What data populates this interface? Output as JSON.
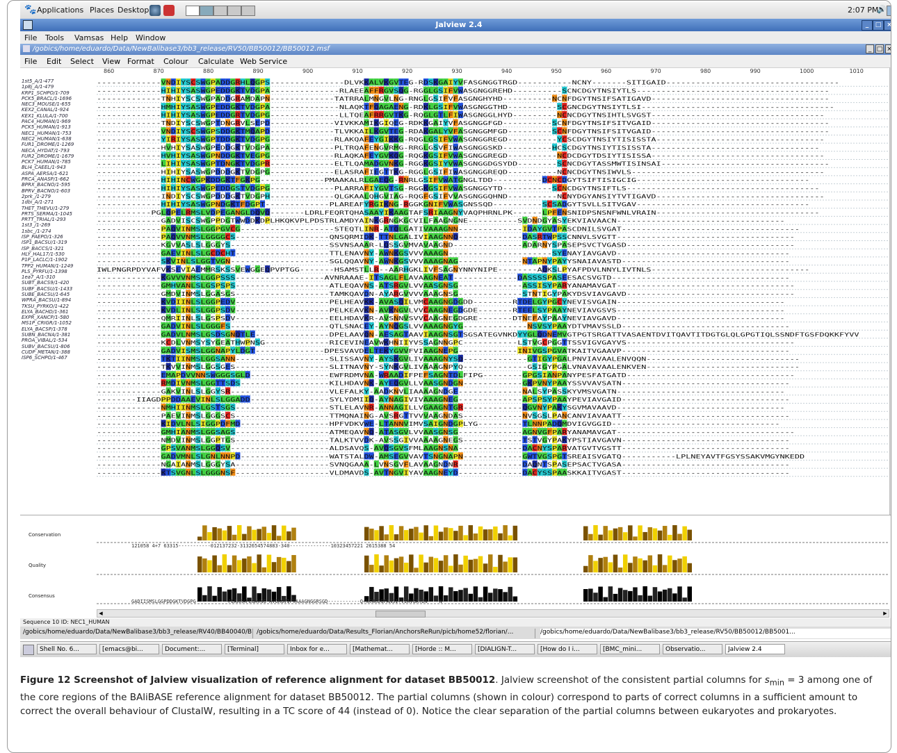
{
  "desktop": {
    "menu": [
      "Applications",
      "Places",
      "Desktop"
    ],
    "clock": "2:07 PM"
  },
  "window": {
    "title": "Jalview 2.4",
    "menu": [
      "File",
      "Tools",
      "Vamsas",
      "Help",
      "Window"
    ],
    "doc_path": "/gobics/home/eduardo/Data/NewBalibase3/bb3_release/RV50/BB50012/BB50012.msf",
    "doc_menu": [
      "File",
      "Edit",
      "Select",
      "View",
      "Format",
      "Colour",
      "Calculate",
      "Web Service"
    ]
  },
  "ruler": [
    "860",
    "870",
    "880",
    "890",
    "900",
    "910",
    "920",
    "930",
    "940",
    "950",
    "960",
    "970",
    "980",
    "990",
    "1000",
    "1010"
  ],
  "sequences": [
    "1st5_A/1-477",
    "1p8j_A/1-479",
    "KRP1_SCHPO/1-709",
    "PCK5_BRACL/1-1696",
    "NEC3_MOUSE/1-655",
    "KEX2_CANAL/1-924",
    "KEX1_KLULA/1-700",
    "PAC4_HUMAN/1-969",
    "PCK5_HUMAN/1-913",
    "NEC1_HUMAN/1-753",
    "NEC2_HUMAN/1-638",
    "FUR1_DROME/1-1269",
    "NECA_HYDAT/1-793",
    "FUR2_DROME/1-1679",
    "PCK7_HUMAN/1-785",
    "BLI4_CAEEL/1-943",
    "ASPA_AERSA/1-621",
    "PRCA_ANASP/1-662",
    "BPRX_BACNO/1-595",
    "BPRV_BACNO/1-603",
    "2prk_/1-279",
    "1dbi_A/1-271",
    "THET_THEVU/1-279",
    "PRTS_SERMA/1-1045",
    "PRTT_TRIAL/1-293",
    "1st3_/1-269",
    "1sbc_/1-274",
    "ISP_PAEPO/1-326",
    "ISP1_BACSU/1-319",
    "ISP_BACCS/1-321",
    "HLY_HAL17/1-530",
    "P1P_LACLC/1-1902",
    "TPP2_HUMAN/1-1249",
    "PLS_PYRFU/1-1398",
    "1ea7_A/1-310",
    "SUBT_BACS9/1-420",
    "SUBF_BACSU/1-1433",
    "SUBE_BACSU/1-645",
    "WPRA_BACSU/1-894",
    "TKSU_PYRKO/1-422",
    "ELYA_BACHD/1-361",
    "EXPR_XANCP/1-580",
    "MS1P_CRIGR/1-1052",
    "ELYA_BACSP/1-378",
    "SUBN_BACNA/1-381",
    "PROA_VIBAL/1-534",
    "SUBV_BACSU/1-806",
    "CUDP_METAN/1-388",
    "ISP6_SCHPO/1-467"
  ],
  "alignment_rows": [
    "-------------VNDIYSCSWGPADDGRHLQGPS---------------DLVKKALVKGVTEG-RDSKGAIYVFASGNGGTRGD-----------NCNY-------SITIGAID-----------------------------------",
    "-------------HIHIYSASWGPEDDGKTVDGPA--------------RLAEEAFFRGVSQG-RGGLGSIFVWASGNGGREHD----------SCNCDGYTNSIYTLS---------------------------------------",
    "-------------TNHIYSCSWGPADDGRAMDAPN-------------TATRRALMNGVLNG-RNGLGSIFVFASGNGHYHD----------NCNFDGYTNSIFSATIGAVD------------------------------------",
    "-------------HMHIYSASWGPEDDGKTVDGPA--------------NLAQKTFQAGAENG-RDKLGSIFVWASGNGGTHD----------SCGNCDGYTNSIYTLSI---------------------------------------",
    "-------------HIHIYSASWGPEDDGRTVDGPG--------------LLTQEAFRRGVTKG-RQGLGTLFIWASGNGGLHYD---------NCNCDGYTNSIHTLSVGST-----------------------------------",
    "-------------TNDIYSCSWGPTDNGRVLSEPD-------------VIVKKAMIKGIQEG-RDKKGAIYVFASGNGGFGD----------SCNFDGYTNSIFSITVGAID------------------------------------",
    "-------------VNDIYSCSWGPSDDGKTMQAPD-------------TLVKKAILKGVTEG-RDAKGALYVFASGNGGMFGD---------SCNFDGYTNSIFSITVGAID------------------------------------",
    "-------------YIRIYSASWGPTDDGKTVDGPG-------------RLAKQAFEYGIKKG-RQGLGSIFVWASGNGGREGD----------YCSCDGYTNSIYTISISSTA----------------------------------",
    "-------------HVHIYSASWGPEDDGKTVDGPA-------------PLTRQAFENGVRMG-RRGLGSVFIWASGNGGSKD----------HCSCDGYTNSIYTISISSTA----------------------------------",
    "-------------HVHIYSASWGPNDDGKTVEGPG-------------RLAQKAFEYGVKQG-RQGKGSIFVWASGNGGREGD----------NCDCDGYTDSIYTISISSA-----------------------------------",
    "-------------LIHIYSASWGPTDNGKTVDGPR-------------ELTLQAMADGVNKG-RGGKGSIYVWASGNGGDGSYDD--------SCNCDGYTASSMWTISINSAI----------------------------------",
    "-------------HIHIYSASWGPDDDGKTVDGPG-------------ELASRAFIEGTTKG-RGGLGSIFIWASGNGGREQD----------NCNCDGYTNSIWVLS---------------------------------------",
    "-------------HIHINCWGPKDDGKTFGKPG-------------PMAAKALRLGAEQG-RNRLGSIFVWATGNGLTDD----------DCNCDGYTSIFTISIGCIG-----------------------------------",
    "-------------HIHIYSASWGPEDDGSTVDGPG-------------PLARRAFIYGVTSG-RGGKGSIFVWASGNGGYTD----------SCNCDGYTNSIFTLS---------------------------------------",
    "-------------INDIYSCSWGPDDDGKTVDGPH-------------QLGKAALQHGVIAG-RQGFGSIFVVASGNGGQHND----------NCNYDGYANSIYTVTIGAVD----------------------------------",
    "-------------HIHIYSASWGPNDGKTFDGPT-------------PLAREAFYRGIKNG-RGGKGNIFVWASGNSSQD----------SCSADGYTSVLLSITVGAV-----------------------------------",
    "-----------PGLQPELRMSLVDPEGANGLDQVQ-------LDRLFEQRTQHASAAYIKAAGTAFSRIAAGNYVAQPHRNLPK------LPFENSNIDPSNSNFWNLVRAIN---------------------------------",
    "-------------GADVISCSWGPPDGTWWDDKDPLHKQKVPLPDSTRLAMDYAINKGRNGKGCVILFAAGNGNE----------SVDNDGYASYEKVIAVAACN----------------------------------",
    "-------------PAQVINMSLGGPGVCG-------------------STEQTLINR-ATQLGATIVAAAGNN-------------IDAYGVTPASCDNILSVGAT------------------------------------",
    "-------------PAQVVNMSLGGGGCS-------------------QNSQRMIDK-TTNLGALIVIAAGNNQ-------------DASRTWPSSCNNVLSVGTT------------------------------------",
    "-------------KGVVASLSLGGGYS--------------------SSVNSAAAR-LQSSGVMVAVAAGND--------------ADARNYSPASEPSVCTVGASD----------------------------------",
    "-------------GAEVINLSLGCDCHT-------------------TTLENAVNY-AWNKGSVVVAAAGN---------------------SYENAYIAVGAVD-----------------------------------",
    "-------------SKVINLSLGGTVGN--------------------SGLQQAVNY-AWNKGSVVVAAAGNAG-------------NTAPNYPAYYSNAIAVASTD----------------------------------",
    "IWLPNGRPDYVAFVKSEVIAEMMRSKSSVEWGGEQPVPTGG-------HSAMSTLLR--AARHGKLIVFSAGNYNNYNIPE--------AQKSLPYAFPDVLNNYLIVTNLS--------------------------------",
    "-------------KGVVVNMSLGGPSSS------------------AVNRAAAE-ITSAGLFLAVAAGNEAT-------------DASSSSPASEESACSVGTD------------------------------------",
    "-------------GMHVANLSLGSPSPS-------------------ATLEQAVNS-ATSRGVLVVAASGNSG-------------ASSISYPARYANAMAVGAT------------------------------------",
    "-------------GMDVINMSLGGASGS-------------------TAMKQAVDN-AYARGVVVVAAAGNSG-------------STNTIGYPAKYDSVIAVGAVD----------------------------------",
    "-------------KVDIINLSLGGPEDV-------------------PELHEAVKK-AVASQILVMCAAGNGDGDD--------RTDELGYPGCYNEVISVGAIN----------------------------------",
    "-------------KVDLINLSLGGPSDV-------------------PELKEAVKN-AVKNGVLVVCAAGNEGDGDE-------RTEELSYPAAYNEVIAVGSVS----------------------------------",
    "-------------QMRIINLSLGSPSDV-------------------EELHDAVKR-AVSNNVSVVCAAGNEGDGRE-------DTNEFAYPAAYNEVIAVGAVD----------------------------------",
    "-------------GADVINLSLGGGFS--------------------QTLSNACEY-AYNQGSLVVAAAGNGYG-------------NSVSYPAAYDTVMAVSSLD----------------------------------",
    "-------------GADVLNMSLGSDSGNQTLE---------------DPELAAVQN-AESAGTAAVIAAGNSGTSGSATEGVNKDYYGLQDNEMVGTPGTSRGATTVASAENTDVITQAVTITDGTGLQLGPGTIQLSSNDFTGSFDQKKFYVV",
    "-------------KCDLVNMSYSYGEATHWPNSG-------------RICEVINEAVWKHNIIYVSSAGNNGPC-----------LSTVGCPGGTTSSVIGVGAYVS----------------------------------",
    "-------------GADVISMSLGGNAPYLDGT--------------DPESVAVDELTEKYGVVFVIAAGNEPG------------INIVGSPGVATKAITVGAAVP----------------------------------",
    "-------------TKTIINMSLGGSANN-------------------SLISSAVNY-AYSKGVLIVAAAGNYSQ-------------GTIGYPGALPNVIAVAALENVQQN-------------------------------",
    "-------------TKVVINMSLGGSGES-------------------SLITNAVNY-SYNKGVLIVAAAGNPYQ-------------GSIGYPGALVNAVAVAALENKVEN-------------------------------",
    "-------------EMAPDVVNNSWGGGSGLD----------------EWFRDMVNA-WRAADIFPEFSAGNTDLFIPG--------GPGSIANPANYPESFATGATD----------------------------------",
    "-------------RMDIVNMSLGGTTSDS------------------KILHDAVNK-AYEQGVLLVAASGNDGN------------GKPVNYPAAYSSVVAVSATN----------------------------------",
    "-------------GAKVINLSLGGYSR--------------------VLEFALKY-AADKNVLIAAAAGNDGE-------------NALSYPASSKYVMSVGATN----------------------------------",
    "--------IIAGDPPDDAAEVINLSLGGADD----------------SYLYDMIIQ-AYNAGIVIVAAAGNEG-------------APSPSYPAAYPEVIAVGAID----------------------------------",
    "-------------NMHIINMSLGSTSGS-------------------STLELAVNR-ANNAGILLVGAAGNTGR------------QGVNYPAKYSGVMAVAAVD----------------------------------",
    "-------------PAEVINMSLGGGSCS-------------------TTMQNAING-AVSRGTTVVVAAGNDAS------------NVSGSLPANCANVIAVAATT----------------------------------",
    "-------------KIDVLNLSIGGPDFMD------------------HPFVDKVWE-LTANNVIMVSAIGNDGPLYG---------TLNNPADQMDVIGVGGID----------------------------------",
    "-------------GMHIANMSLGGSAGS-------------------ATMEQAVNQ-ATASGVLVVAASGNSG-------------AGNVGFPARYANAMAVGAT------------------------------------",
    "-------------NMDVINMSLGGPTGS-------------------TALKTVVDK-AVSSGIVVAAAAGNEGS------------TSTVGYPAKYPSTIAVGAVN----------------------------------",
    "-------------GPSVANMSLGGQSV--------------------ALDSAVQS-AVQSGVSFMLAAGNSNA-------------DACNYSPARVATGVTVGSTT----------------------------------",
    "-------------GADVMNLSLGNLNNPD------------------WATSTALDW-AMSEGVVAVTSNGNAPN------------GWTVGSPGTSREAISVGATQ-----------LPLNEYAVTFGSYSSAKVMGYNKEDD",
    "-------------NGAIANMSLGGGYSA-------------------SVNQGAAA-LVNSGVFLAVAAGNDNR-------------DAQNTSPASEPSACTVGASA----------------------------------",
    "-------------KTSVGNLSLGGGNSF-------------------VLDMAVDS-AVTNGVIYAVAAGNEYD-------------DACYSSPAASKKAITVGAST----------------------------------"
  ],
  "annotations": {
    "labels": [
      "Conservation",
      "Quality",
      "Consensus"
    ],
    "conservation_text": "121058 4+7 63315-----------012137232-3132654574883-340--------------10323457221 2615388 54",
    "consensus_text": "GADIISMSLGGPDDGKTVDGPG-----------PLAKKAFLGAVNG-AVGKGVIFVAAAGNGGRSGD-----------Q+NCNCDGPANSI+VIAVGATDN----N-"
  },
  "status": "Sequence 10 ID: NEC1_HUMAN",
  "window_tabs": [
    "/gobics/home/eduardo/Data/NewBalibase3/bb3_release/RV40/BB40040/BB4004...",
    "/gobics/home/eduardo/Data/Results_Florian/AnchorsReRun/picb/home52/florian/...",
    "/gobics/home/eduardo/Data/NewBalibase3/bb3_release/RV50/BB50012/BB5001..."
  ],
  "taskbar": [
    "Shell No. 6...",
    "[emacs@bi...",
    "Document:...",
    "[Terminal]",
    "Inbox for e...",
    "[Mathemat...",
    "[Horde :: M...",
    "[DIALIGN-T...",
    "[How do I i...",
    "[BMC_mini...",
    "Observatio...",
    "Jalview 2.4"
  ],
  "caption": {
    "bold": "Figure 12 Screenshot of Jalview visualization of reference alignment for dataset BB50012",
    "pre": ". Jalview screenshot of the consistent partial columns for ",
    "s": "s",
    "sub": "min",
    "post": " = 3 among one of the core regions of the BAliBASE reference alignment for dataset BB50012. The partial columns (shown in colour) correspond to parts of correct columns in a sufficient amount to correct the overall behaviour of ClustalW, resulting in a TC score of 44 (instead of 0). Notice the clear separation of the partial columns between eukaryotes and prokaryotes."
  },
  "colors": {
    "red": "#e0201a",
    "orange": "#f08a10",
    "yellow": "#e8e020",
    "green": "#40d040",
    "cyan": "#20c8d0",
    "blue": "#2050e0",
    "navy": "#1828a0",
    "hist_dark": "#7a5200",
    "hist_mid": "#b08010",
    "hist_light": "#f0d000"
  }
}
